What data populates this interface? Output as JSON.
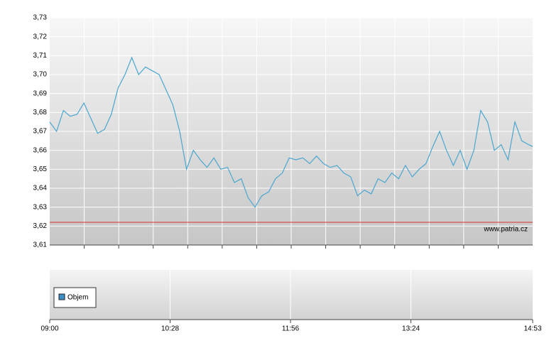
{
  "chart_data": {
    "type": "line",
    "x": [
      "09:00",
      "09:05",
      "09:10",
      "09:15",
      "09:20",
      "09:25",
      "09:30",
      "09:35",
      "09:40",
      "09:45",
      "09:50",
      "09:55",
      "10:00",
      "10:05",
      "10:10",
      "10:15",
      "10:20",
      "10:25",
      "10:30",
      "10:35",
      "10:40",
      "10:45",
      "10:50",
      "10:55",
      "11:00",
      "11:05",
      "11:10",
      "11:15",
      "11:20",
      "11:25",
      "11:30",
      "11:35",
      "11:40",
      "11:45",
      "11:50",
      "11:55",
      "12:00",
      "12:05",
      "12:10",
      "12:15",
      "12:20",
      "12:25",
      "12:30",
      "12:35",
      "12:40",
      "12:45",
      "12:50",
      "12:55",
      "13:00",
      "13:05",
      "13:10",
      "13:15",
      "13:20",
      "13:25",
      "13:30",
      "13:35",
      "13:40",
      "13:45",
      "13:50",
      "13:55",
      "14:00",
      "14:05",
      "14:10",
      "14:15",
      "14:20",
      "14:25",
      "14:30",
      "14:35",
      "14:40",
      "14:45",
      "14:50",
      "14:53"
    ],
    "series": [
      {
        "color": "#4ba6cf",
        "values": [
          3.675,
          3.67,
          3.681,
          3.678,
          3.679,
          3.685,
          3.677,
          3.669,
          3.671,
          3.679,
          3.693,
          3.7,
          3.709,
          3.7,
          3.704,
          3.702,
          3.7,
          3.692,
          3.684,
          3.67,
          3.65,
          3.66,
          3.655,
          3.651,
          3.656,
          3.65,
          3.651,
          3.643,
          3.645,
          3.635,
          3.63,
          3.636,
          3.638,
          3.645,
          3.648,
          3.656,
          3.655,
          3.656,
          3.653,
          3.657,
          3.653,
          3.651,
          3.652,
          3.648,
          3.646,
          3.636,
          3.639,
          3.637,
          3.645,
          3.643,
          3.648,
          3.645,
          3.652,
          3.646,
          3.65,
          3.653,
          3.662,
          3.67,
          3.66,
          3.652,
          3.66,
          3.65,
          3.66,
          3.681,
          3.675,
          3.66,
          3.663,
          3.655,
          3.675,
          3.665,
          3.663,
          3.662
        ]
      }
    ],
    "xlim": [
      "09:00",
      "14:53"
    ],
    "xticks": [
      "09:00",
      "10:28",
      "11:56",
      "13:24",
      "14:53"
    ],
    "ylim": [
      3.61,
      3.73
    ],
    "yticks": [
      {
        "value": 3.61,
        "label": "3,61"
      },
      {
        "value": 3.62,
        "label": "3,62"
      },
      {
        "value": 3.63,
        "label": "3,63"
      },
      {
        "value": 3.64,
        "label": "3,64"
      },
      {
        "value": 3.65,
        "label": "3,65"
      },
      {
        "value": 3.66,
        "label": "3,66"
      },
      {
        "value": 3.67,
        "label": "3,67"
      },
      {
        "value": 3.68,
        "label": "3,68"
      },
      {
        "value": 3.69,
        "label": "3,69"
      },
      {
        "value": 3.7,
        "label": "3,70"
      },
      {
        "value": 3.71,
        "label": "3,71"
      },
      {
        "value": 3.72,
        "label": "3,72"
      },
      {
        "value": 3.73,
        "label": "3,73"
      }
    ],
    "grid": true,
    "reference_line": {
      "value": 3.622,
      "color": "#d9302a"
    },
    "watermark": "www.patria.cz",
    "volume_legend": {
      "name": "Objem",
      "color": "#3d8fc8"
    }
  }
}
